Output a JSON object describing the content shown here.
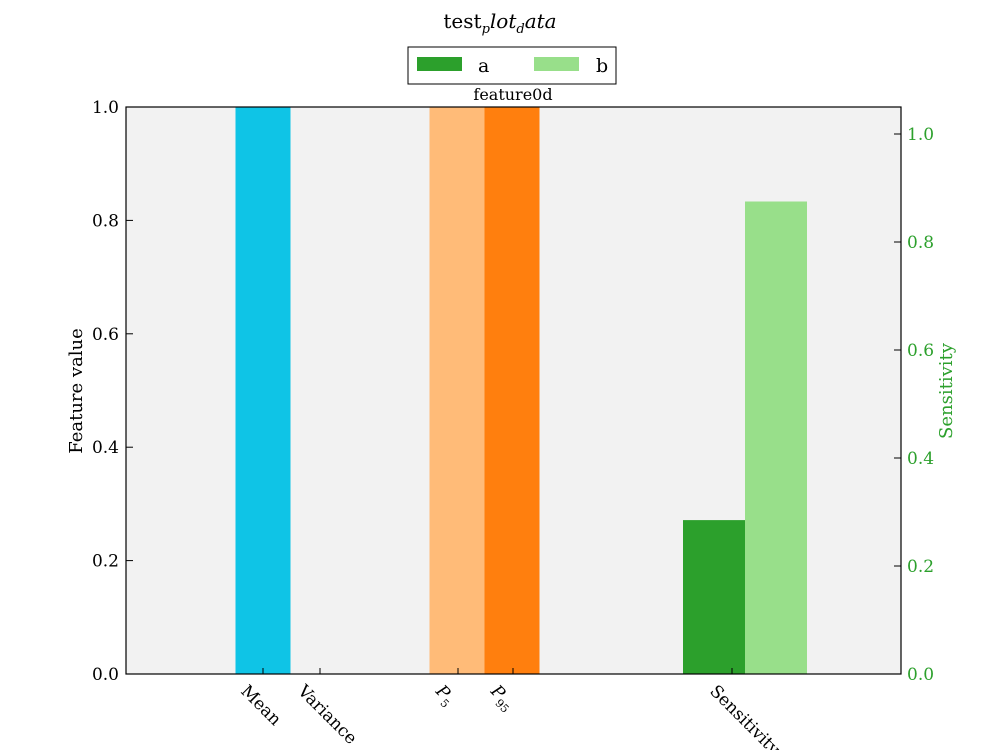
{
  "chart_data": {
    "type": "bar",
    "title": "test_plot_data",
    "title_main": "test",
    "title_sub": "p",
    "title_rest": "lot",
    "title_sub2": "d",
    "title_rest2": "ata",
    "subtitle": "feature0d",
    "ylabel": "Feature value",
    "ylabel_right": "Sensitivity",
    "ylim": [
      0,
      1.0
    ],
    "ylim_right": [
      0,
      1.05
    ],
    "grid": false,
    "legend_position": "top-center",
    "background_color": "#f2f2f2",
    "categories": [
      {
        "label": "Mean",
        "sub": ""
      },
      {
        "label": "Variance",
        "sub": ""
      },
      {
        "label": "P",
        "sub": "5"
      },
      {
        "label": "P",
        "sub": "95"
      },
      {
        "label": "Sensitivity",
        "sub": ""
      }
    ],
    "left_ticks": [
      "0.0",
      "0.2",
      "0.4",
      "0.6",
      "0.8",
      "1.0"
    ],
    "left_tick_values": [
      0,
      0.2,
      0.4,
      0.6,
      0.8,
      1.0
    ],
    "right_ticks": [
      "0.0",
      "0.2",
      "0.4",
      "0.6",
      "0.8",
      "1.0"
    ],
    "right_tick_values": [
      0,
      0.2,
      0.4,
      0.6,
      0.8,
      1.0
    ],
    "feature_bars": [
      {
        "category": "Mean",
        "value": 1.0,
        "color": "#0fc4e6"
      },
      {
        "category": "Variance",
        "value": 0.0,
        "color": "#0fc4e6"
      },
      {
        "category": "P_5",
        "value": 1.0,
        "color": "#ffbb78"
      },
      {
        "category": "P_95",
        "value": 1.0,
        "color": "#ff7f0e"
      }
    ],
    "series": [
      {
        "name": "a",
        "category": "Sensitivity",
        "value": 0.285,
        "color": "#2ca02c"
      },
      {
        "name": "b",
        "category": "Sensitivity",
        "value": 0.875,
        "color": "#98df8a"
      }
    ],
    "right_axis_color": "#2ca02c"
  }
}
